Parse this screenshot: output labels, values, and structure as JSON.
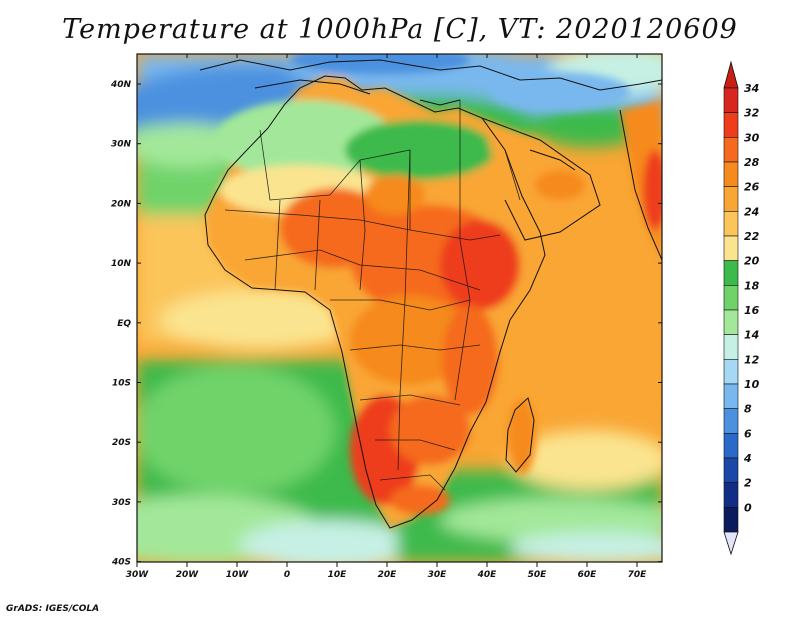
{
  "title": "Temperature at 1000hPa [C], VT: 2020120609",
  "credit": "GrADS: IGES/COLA",
  "map": {
    "lon_labels": [
      "30W",
      "20W",
      "10W",
      "0",
      "10E",
      "20E",
      "30E",
      "40E",
      "50E",
      "60E",
      "70E"
    ],
    "lat_labels": [
      "40N",
      "30N",
      "20N",
      "10N",
      "EQ",
      "10S",
      "20S",
      "30S",
      "40S"
    ]
  },
  "colorbar": {
    "labels": [
      "34",
      "32",
      "30",
      "28",
      "26",
      "24",
      "22",
      "20",
      "18",
      "16",
      "14",
      "12",
      "10",
      "8",
      "6",
      "4",
      "2",
      "0"
    ],
    "colors": [
      "#d7261e",
      "#ee3d1a",
      "#f56a1e",
      "#f68a1d",
      "#f9a634",
      "#fbc55a",
      "#fbe48f",
      "#3cba4c",
      "#6fd36a",
      "#a3e89a",
      "#c6f0e4",
      "#a4d8f5",
      "#79b8ee",
      "#4c91e0",
      "#2a68c9",
      "#1a47a8",
      "#122d86",
      "#0c1a5e"
    ],
    "top_arrow_color": "#c81e14",
    "bottom_arrow_color": "#e4e4fb"
  },
  "colors": {
    "ocean_cool": "#79b8ee",
    "ocean_mild": "#6fd36a",
    "land_hot": "#f56a1e",
    "outline": "#111111"
  }
}
